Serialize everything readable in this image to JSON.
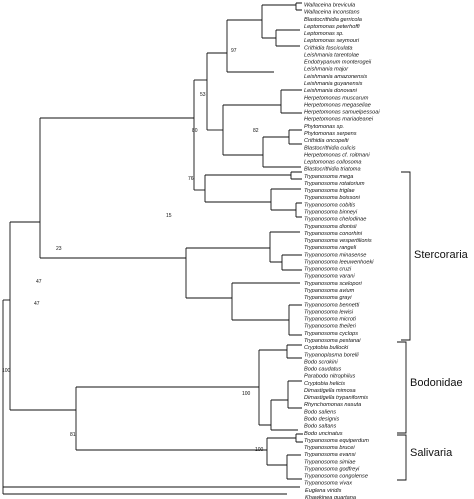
{
  "taxa": [
    "Wallaceina brevicula",
    "Wallaceina inconstans",
    "Blastocrithidia gerricola",
    "Leptomonas peterhoffi",
    "Leptomonas sp.",
    "Leptomonas seymouri",
    "Crithidia fasciculata",
    "Leishmania tarentolae",
    "Endotrypanum monterogeii",
    "Leishmania major",
    "Leishmania amazonensis",
    "Leishmania guyanensis",
    "Leishmania donovani",
    "Herpetomonas muscarum",
    "Herpetomonas megaseliae",
    "Herpetomonas samuelpessoai",
    "Herpetomonas mariadeanei",
    "Phytomonas sp.",
    "Phytomonas serpens",
    "Crithidia oncopelti",
    "Blastocrithidia culicis",
    "Herpetomonas cf. roitmani",
    "Leptomonas collosoma",
    "Blastocrithidia triatoma",
    "Trypanosoma mega",
    "Trypanosoma rotatorium",
    "Trypanosoma triglae",
    "Trypanosoma boissoni",
    "Trypanosoma cobitis",
    "Trypanosoma binneyi",
    "Trypanosoma chelodinae",
    "Trypanosoma dionisii",
    "Trypanosoma conorhini",
    "Trypanosoma vespertilionis",
    "Trypanosoma rangeli",
    "Trypanosoma minasense",
    "Trypanosoma leeuwenhoeki",
    "Trypanosoma cruzi",
    "Trypanosoma varani",
    "Trypanosoma scelopori",
    "Trypanosoma avium",
    "Trypanosoma grayi",
    "Trypanosoma bennetti",
    "Trypanosoma lewisi",
    "Trypanosoma microti",
    "Trypanosoma theileri",
    "Trypanosoma cyclops",
    "Trypanosoma pestanai",
    "Cryptobia bullocki",
    "Trypanoplasma borelli",
    "Bodo scrokini",
    "Bodo caudatus",
    "Parabodo nitrophilus",
    "Cryptobia helicis",
    "Dimastigella mimosa",
    "Dimastigella trypaniformis",
    "Rhynchomonas nasuta",
    "Bodo saliens",
    "Bodo designis",
    "Bodo saltans",
    "Bodo uncinatus",
    "Trypanosoma equiperdum",
    "Trypanosoma brucei",
    "Trypanosoma evansi",
    "Trypanosoma simiae",
    "Trypanosoma godfreyi",
    "Trypanosoma congolense",
    "Trypanosoma vivax",
    "Euglena viridis",
    "Khawkinea quartana"
  ],
  "groups": [
    "Stercoraria",
    "Bodonidae",
    "Salivaria"
  ],
  "bootstrap": {
    "root": "100",
    "kinetoplastids": "47",
    "bodonid_trypanosome": "81",
    "salivaria": "100",
    "bodonidae": "100",
    "trypanosomatidae": "47",
    "trypanosoma_non_salivarian": "23",
    "stercoraria_core": "15",
    "mega_clade": "76",
    "non_trypanosome": "80",
    "insect_clade": "53",
    "leishmania_clade": "97",
    "phytomonas_clade": "82"
  }
}
